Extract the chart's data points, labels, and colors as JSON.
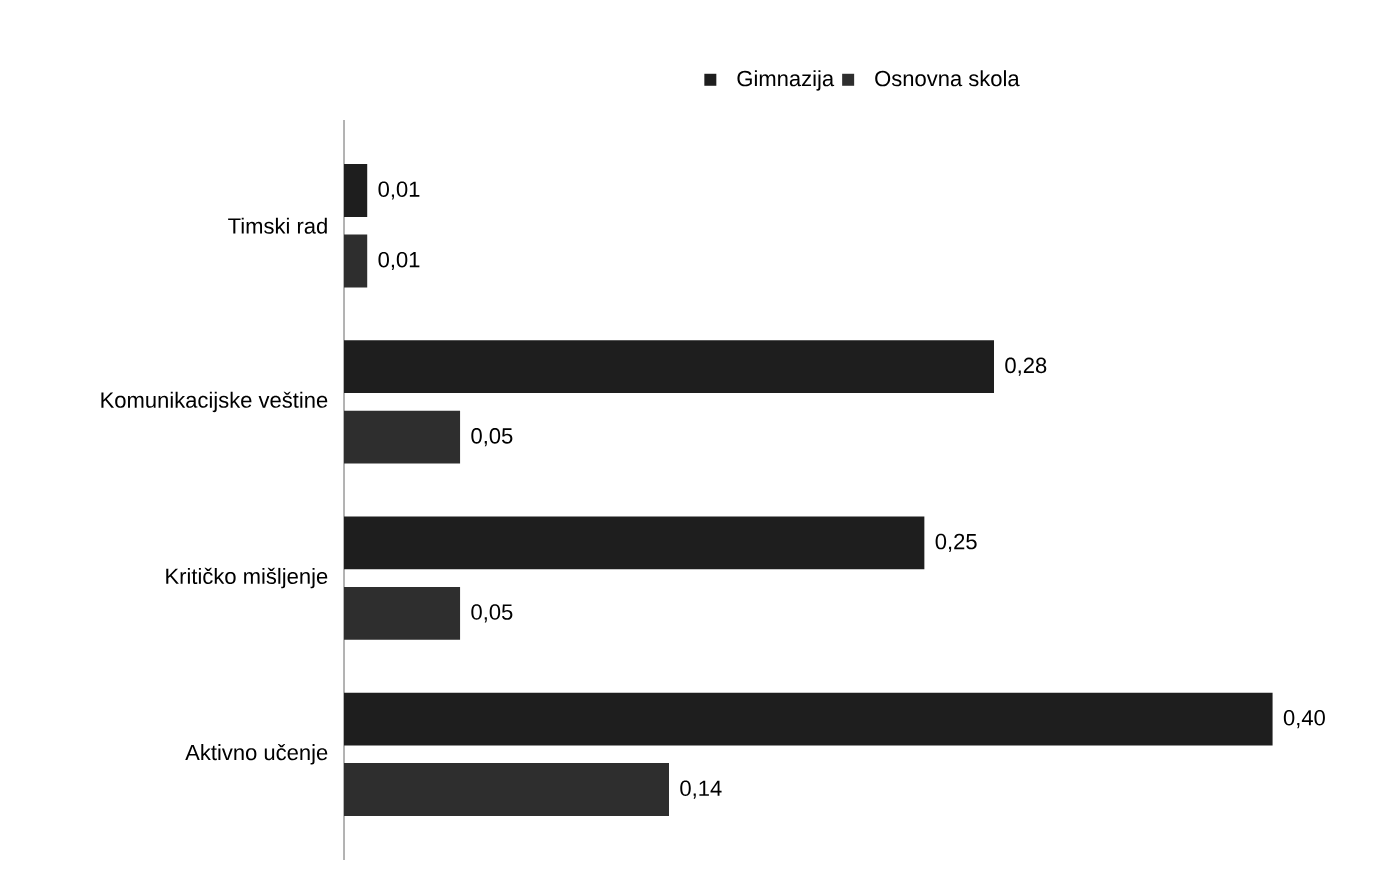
{
  "chart_data": {
    "type": "bar",
    "orientation": "horizontal",
    "legend": "top",
    "categories": [
      "Timski rad",
      "Komunikacijske veštine",
      "Kritičko mišljenje",
      "Aktivno učenje"
    ],
    "series": [
      {
        "name": "Gimnazija",
        "color": "#1e1e1e",
        "values": [
          0.01,
          0.28,
          0.25,
          0.4
        ],
        "value_labels": [
          "0,01",
          "0,28",
          "0,25",
          "0,40"
        ]
      },
      {
        "name": "Osnovna skola",
        "color": "#2e2e2e",
        "values": [
          0.01,
          0.05,
          0.05,
          0.14
        ],
        "value_labels": [
          "0,01",
          "0,05",
          "0,05",
          "0,14"
        ]
      }
    ]
  }
}
